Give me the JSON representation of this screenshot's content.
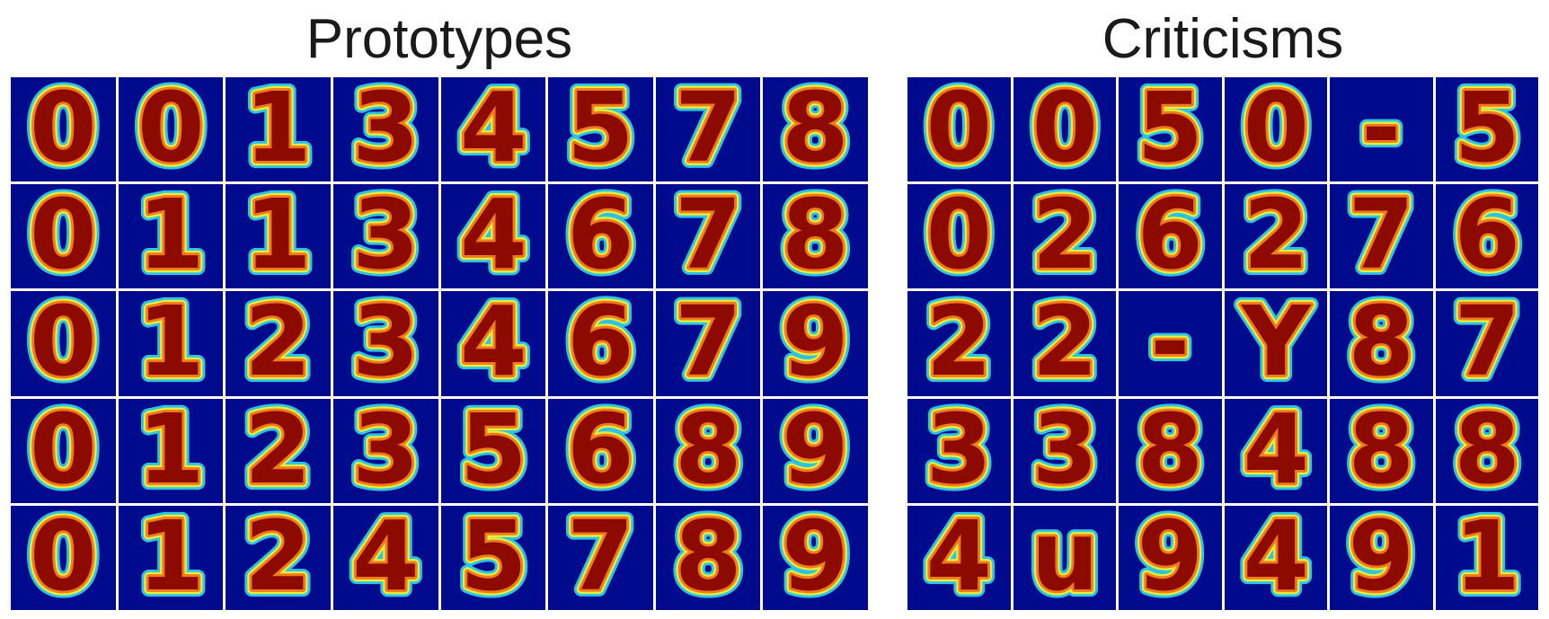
{
  "prototypes": {
    "title": "Prototypes",
    "rows": [
      [
        "0",
        "0",
        "1",
        "3",
        "4",
        "5",
        "7",
        "8"
      ],
      [
        "0",
        "1",
        "1",
        "3",
        "4",
        "6",
        "7",
        "8"
      ],
      [
        "0",
        "1",
        "2",
        "3",
        "4",
        "6",
        "7",
        "9"
      ],
      [
        "0",
        "1",
        "2",
        "3",
        "5",
        "6",
        "8",
        "9"
      ],
      [
        "0",
        "1",
        "2",
        "4",
        "5",
        "7",
        "8",
        "9"
      ]
    ]
  },
  "criticisms": {
    "title": "Criticisms",
    "rows": [
      [
        "0",
        "0",
        "5",
        "0",
        "-",
        "5"
      ],
      [
        "0",
        "2",
        "6",
        "2",
        "7",
        "6"
      ],
      [
        "2",
        "2",
        "-",
        "Y",
        "8",
        "7"
      ],
      [
        "3",
        "3",
        "8",
        "4",
        "8",
        "8"
      ],
      [
        "4",
        "u",
        "9",
        "4",
        "9",
        "1"
      ]
    ]
  },
  "colors": {
    "background": "#000a8c",
    "halo_outer": "#2bc4e6",
    "halo_mid": "#e6ee3a",
    "ring": "#f07a1c",
    "core": "#8c0a00"
  }
}
